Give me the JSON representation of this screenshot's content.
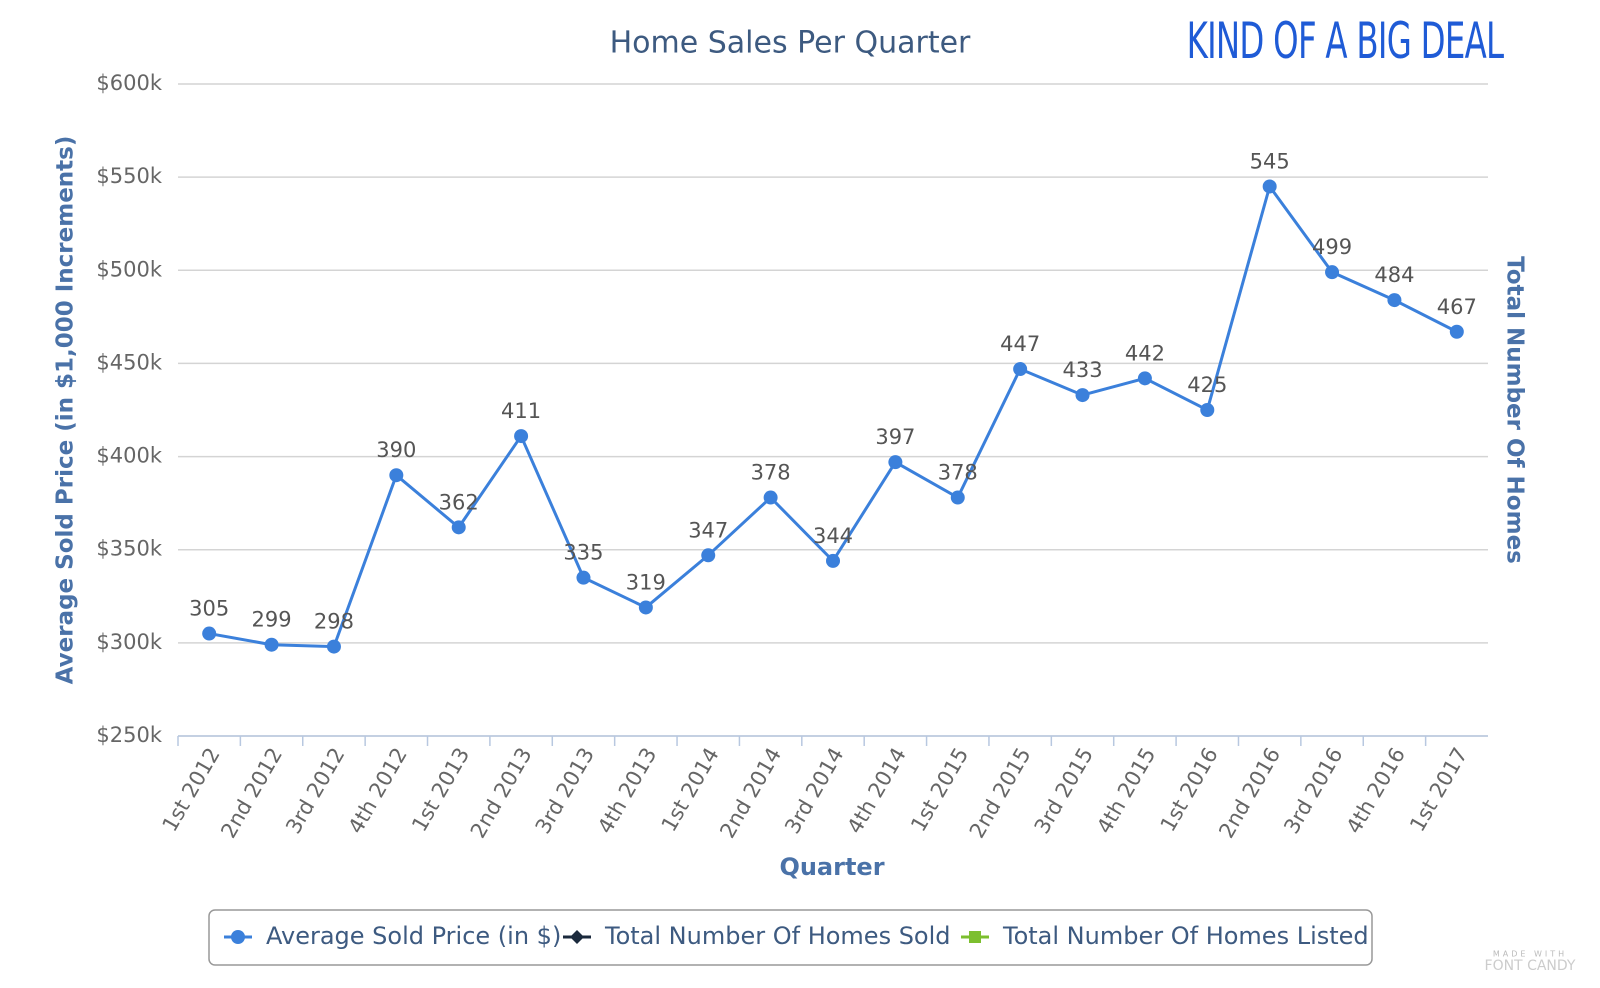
{
  "chart_data": {
    "type": "line",
    "title": "Home Sales Per Quarter",
    "brand": "KIND OF A BIG DEAL",
    "watermark": [
      "MADE WITH",
      "FONT CANDY"
    ],
    "x_label": "Quarter",
    "y_label": "Average Sold Price (in $1,000 Increments)",
    "y2_label": "Total Number Of Homes",
    "categories": [
      "1st 2012",
      "2nd 2012",
      "3rd 2012",
      "4th 2012",
      "1st 2013",
      "2nd 2013",
      "3rd 2013",
      "4th 2013",
      "1st 2014",
      "2nd 2014",
      "3rd 2014",
      "4th 2014",
      "1st 2015",
      "2nd 2015",
      "3rd 2015",
      "4th 2015",
      "1st 2016",
      "2nd 2016",
      "3rd 2016",
      "4th 2016",
      "1st 2017"
    ],
    "series": [
      {
        "name": "Average Sold Price (in $)",
        "color": "#3b80db",
        "values": [
          305,
          299,
          298,
          390,
          362,
          411,
          335,
          319,
          347,
          378,
          344,
          397,
          378,
          447,
          433,
          442,
          425,
          545,
          499,
          484,
          467
        ]
      },
      {
        "name": "Total Number Of Homes Sold",
        "color": "#1b2a3d",
        "axis": "y2",
        "values": [
          null,
          null,
          null,
          null,
          null,
          null,
          null,
          null,
          null,
          null,
          null,
          null,
          null,
          null,
          null,
          null,
          null,
          null,
          null,
          null,
          null
        ]
      },
      {
        "name": "Total Number Of Homes Listed",
        "color": "#7cbf2f",
        "axis": "y2",
        "values": [
          null,
          null,
          null,
          null,
          null,
          null,
          null,
          null,
          null,
          null,
          null,
          null,
          null,
          null,
          null,
          null,
          null,
          null,
          null,
          null,
          null
        ]
      }
    ],
    "ylim": [
      250,
      600
    ],
    "yticks": [
      {
        "value": 250,
        "label": "$250k"
      },
      {
        "value": 300,
        "label": "$300k"
      },
      {
        "value": 350,
        "label": "$350k"
      },
      {
        "value": 400,
        "label": "$400k"
      },
      {
        "value": 450,
        "label": "$450k"
      },
      {
        "value": 500,
        "label": "$500k"
      },
      {
        "value": 550,
        "label": "$550k"
      },
      {
        "value": 600,
        "label": "$600k"
      }
    ],
    "grid": true,
    "legend": "bottom"
  }
}
